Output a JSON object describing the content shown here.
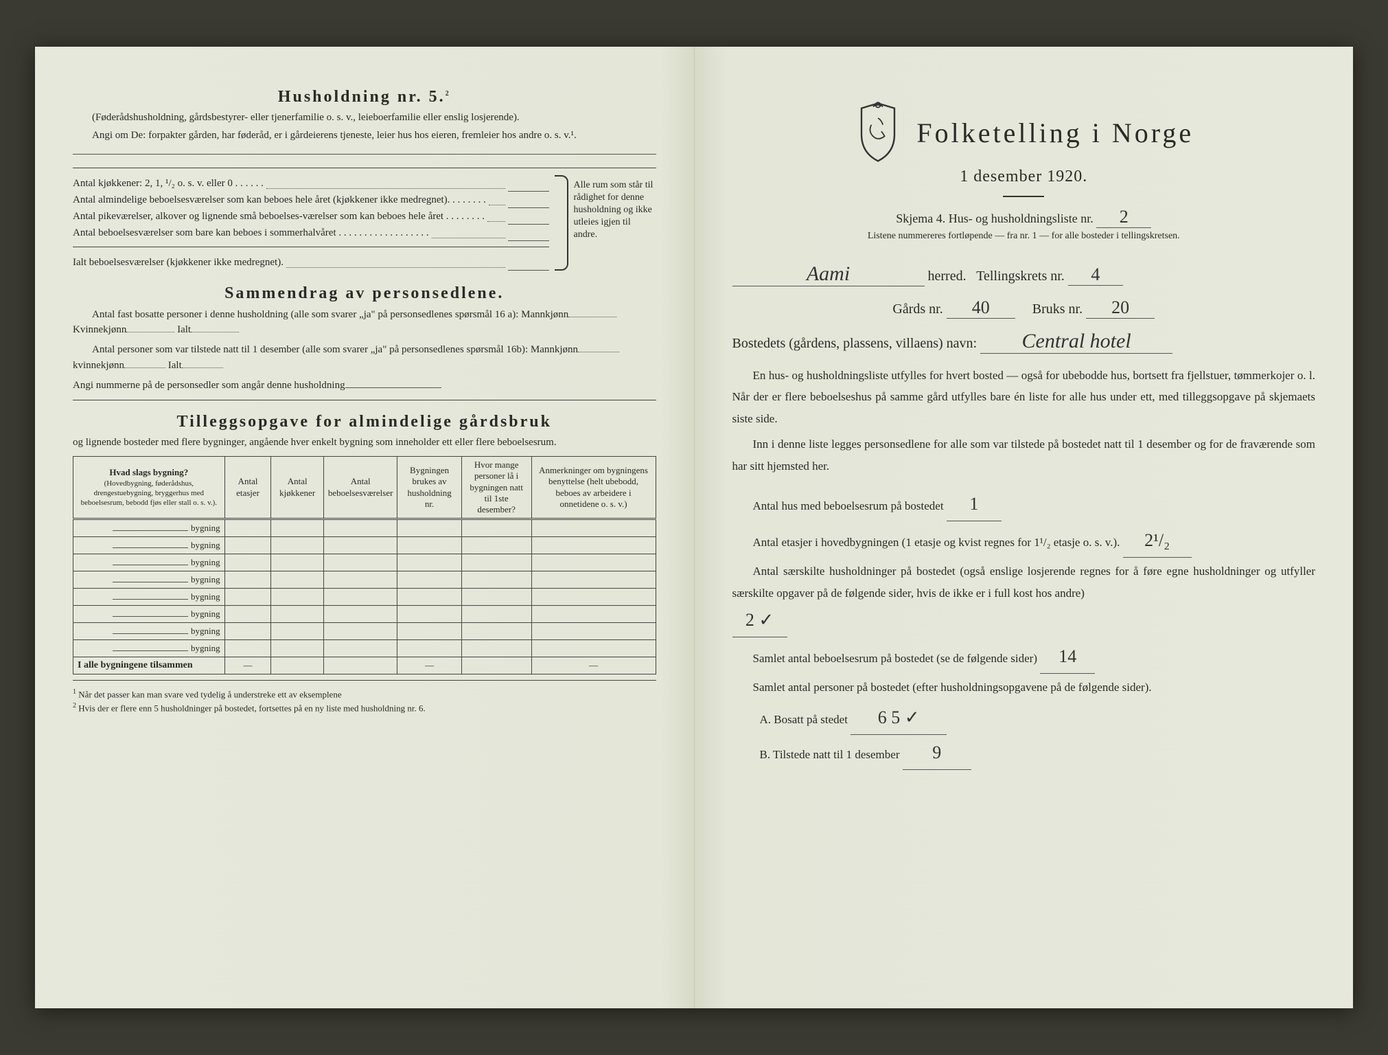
{
  "left": {
    "h5_title": "Husholdning nr. 5.",
    "h5_sup": "2",
    "h5_line1": "(Føderådshusholdning, gårdsbestyrer- eller tjenerfamilie o. s. v., leieboerfamilie eller enslig losjerende).",
    "h5_line2": "Angi om De:  forpakter gården, har føderåd, er i gårdeierens tjeneste, leier hus hos eieren, fremleier hos andre o. s. v.¹.",
    "kjokk_label": "Antal kjøkkener: 2, 1, ¹/₂ o. s. v. eller 0 . . . . . .",
    "room_a": "Antal almindelige beboelsesværelser som kan beboes hele året (kjøkkener ikke medregnet). . . . . . . .",
    "room_b": "Antal pikeværelser, alkover og lignende små beboelses-værelser som kan beboes hele året . . . . . . . .",
    "room_c": "Antal beboelsesværelser som bare kan beboes i sommerhalvåret . . . . . . . . . . . . . . . . . .",
    "room_total": "Ialt beboelsesværelser (kjøkkener ikke medregnet).",
    "brace_text": "Alle rum som står til rådighet for denne husholdning og ikke utleies igjen til andre.",
    "sam_title": "Sammendrag av personsedlene.",
    "sam_l1a": "Antal fast bosatte personer i denne husholdning (alle som svarer „ja\" på personsedlenes spørsmål 16 a): Mannkjønn",
    "sam_l1b": "Kvinnekjønn",
    "sam_l1c": "Ialt",
    "sam_l2a": "Antal personer som var tilstede natt til 1 desember (alle som svarer „ja\" på personsedlenes spørsmål 16b): Mannkjønn",
    "sam_l2b": "kvinnekjønn",
    "sam_l2c": "Ialt",
    "sam_l3": "Angi nummerne på de personsedler som angår denne husholdning",
    "till_title": "Tilleggsopgave for almindelige gårdsbruk",
    "till_sub": "og lignende bosteder med flere bygninger, angående hver enkelt bygning som inneholder ett eller flere beboelsesrum.",
    "th1": "Hvad slags bygning?",
    "th1_sub": "(Hovedbygning, føderådshus, drengestuebygning, bryggerhus med beboelsesrum, bebodd fjøs eller stall o. s. v.).",
    "th2": "Antal etasjer",
    "th3": "Antal kjøkkener",
    "th4": "Antal beboelsesværelser",
    "th5": "Bygningen brukes av husholdning nr.",
    "th6": "Hvor mange personer lå i bygningen natt til 1ste desember?",
    "th7": "Anmerkninger om bygningens benyttelse (helt ubebodd, beboes av arbeidere i onnetidene o. s. v.)",
    "bygning_label": "bygning",
    "row_count": 8,
    "total_row": "I alle bygningene tilsammen",
    "fn1": "Når det passer kan man svare ved tydelig å understreke ett av eksemplene",
    "fn2": "Hvis der er flere enn 5 husholdninger på bostedet, fortsettes på en ny liste med husholdning nr. 6."
  },
  "right": {
    "title": "Folketelling i Norge",
    "date": "1 desember 1920.",
    "skjema": "Skjema 4.  Hus- og husholdningsliste nr.",
    "skjema_nr": "2",
    "listene": "Listene nummereres fortløpende — fra nr. 1 — for alle bosteder i tellingskretsen.",
    "herred_val": "Aami",
    "herred_lbl": "herred.",
    "krets_lbl": "Tellingskrets nr.",
    "krets_val": "4",
    "gards_lbl": "Gårds nr.",
    "gards_val": "40",
    "bruks_lbl": "Bruks nr.",
    "bruks_val": "20",
    "bostedets_lbl": "Bostedets (gårdens, plassens, villaens) navn:",
    "bostedets_val": "Central hotel",
    "p1": "En hus- og husholdningsliste utfylles for hvert bosted — også for ubebodde hus, bortsett fra fjellstuer, tømmerkojer o. l.  Når der er flere beboelseshus på samme gård utfylles bare én liste for alle hus under ett, med tilleggsopgave på skjemaets siste side.",
    "p2": "Inn i denne liste legges personsedlene for alle som var tilstede på bostedet natt til 1 desember og for de fraværende som har sitt hjemsted her.",
    "antal_hus_lbl": "Antal hus med beboelsesrum på bostedet",
    "antal_hus_val": "1",
    "etasjer_lbl": "Antal etasjer i hovedbygningen (1 etasje og kvist regnes for 1¹/₂ etasje o. s. v.).",
    "etasjer_val": "2¹/₂",
    "saers_lbl": "Antal særskilte husholdninger på bostedet (også enslige losjerende regnes for å føre egne husholdninger og utfyller særskilte opgaver på de følgende sider, hvis de ikke er i full kost hos andre)",
    "saers_val": "2 ✓",
    "samlet_beb_lbl": "Samlet antal beboelsesrum på bostedet (se de følgende sider)",
    "samlet_beb_val": "14",
    "samlet_pers_lbl": "Samlet antal personer på bostedet (efter husholdningsopgavene på de følgende sider).",
    "a_lbl": "A.  Bosatt på stedet",
    "a_val": "6  5 ✓",
    "b_lbl": "B.  Tilstede natt til 1 desember",
    "b_val": "9"
  },
  "colors": {
    "paper": "#e8eae0",
    "ink": "#2a2a26",
    "handwriting": "#333333"
  }
}
